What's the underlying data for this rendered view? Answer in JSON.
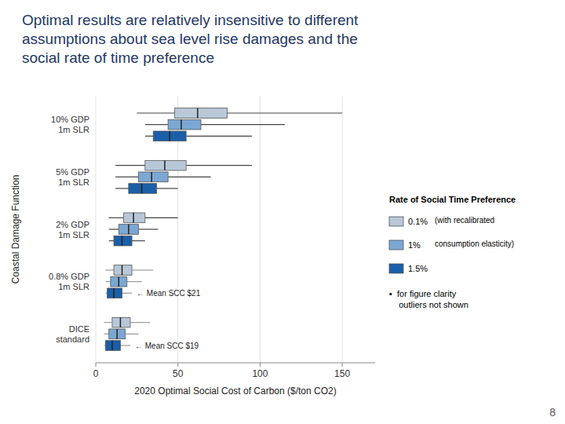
{
  "chart_data": {
    "type": "box",
    "orientation": "horizontal",
    "title": "Optimal results are relatively insensitive to different\nassumptions about sea level rise damages and the\nsocial rate of time preference",
    "x_label": "2020 Optimal Social Cost of Carbon ($/ton CO2)",
    "y_label": "Coastal Damage Function",
    "categories": [
      "DICE\nstandard",
      "0.8% GDP\n1m SLR",
      "2% GDP\n1m SLR",
      "5% GDP\n1m SLR",
      "10% GDP\n1m SLR"
    ],
    "series": [
      {
        "name": "0.1%",
        "color": "#b8c8d8",
        "values": [
          {
            "whislo": 5,
            "q1": 10,
            "med": 15,
            "q3": 21,
            "whishi": 33
          },
          {
            "whislo": 6,
            "q1": 11,
            "med": 16,
            "q3": 22,
            "whishi": 35
          },
          {
            "whislo": 8,
            "q1": 17,
            "med": 23,
            "q3": 30,
            "whishi": 50
          },
          {
            "whislo": 12,
            "q1": 30,
            "med": 42,
            "q3": 55,
            "whishi": 95
          },
          {
            "whislo": 25,
            "q1": 48,
            "med": 62,
            "q3": 80,
            "whishi": 150
          }
        ]
      },
      {
        "name": "1%",
        "color": "#7ba7d4",
        "values": [
          {
            "whislo": 5,
            "q1": 8,
            "med": 13,
            "q3": 18,
            "whishi": 26
          },
          {
            "whislo": 6,
            "q1": 9,
            "med": 14,
            "q3": 19,
            "whishi": 28
          },
          {
            "whislo": 8,
            "q1": 14,
            "med": 20,
            "q3": 26,
            "whishi": 38
          },
          {
            "whislo": 12,
            "q1": 26,
            "med": 34,
            "q3": 44,
            "whishi": 70
          },
          {
            "whislo": 30,
            "q1": 44,
            "med": 52,
            "q3": 64,
            "whishi": 115
          }
        ]
      },
      {
        "name": "1.5%",
        "color": "#1a5fa8",
        "values": [
          {
            "whislo": 5,
            "q1": 6,
            "med": 10,
            "q3": 15,
            "whishi": 21
          },
          {
            "whislo": 6,
            "q1": 7,
            "med": 11,
            "q3": 16,
            "whishi": 22
          },
          {
            "whislo": 8,
            "q1": 11,
            "med": 16,
            "q3": 22,
            "whishi": 30
          },
          {
            "whislo": 12,
            "q1": 20,
            "med": 28,
            "q3": 37,
            "whishi": 50
          },
          {
            "whislo": 30,
            "q1": 35,
            "med": 45,
            "q3": 55,
            "whishi": 95
          }
        ]
      }
    ],
    "annotations": [
      {
        "text": "← Mean SCC $21",
        "category": "0.8% GDP\n1m SLR",
        "series": "1.5%"
      },
      {
        "text": "← Mean SCC $19",
        "category": "DICE\nstandard",
        "series": "1.5%"
      }
    ],
    "legend_title": "Rate of Social Time Preference",
    "legend_notes": [
      "(with recalibrated",
      "consumption elasticity)"
    ],
    "footnote": "▪  for figure clarity\n    outliers not shown",
    "page_number": "8",
    "xlim": [
      0,
      170
    ],
    "xticks": [
      0,
      50,
      100,
      150
    ],
    "grid": true,
    "legend": "right"
  }
}
